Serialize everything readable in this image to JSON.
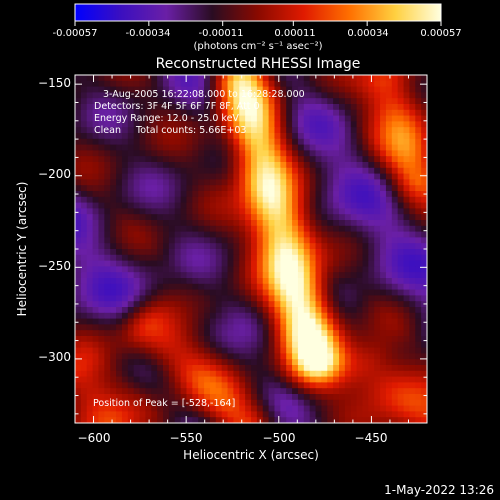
{
  "colorbar": {
    "tick_labels": [
      "-0.00057",
      "-0.00034",
      "-0.00011",
      "0.00011",
      "0.00034",
      "0.00057"
    ],
    "tick_values": [
      -0.00057,
      -0.00034,
      -0.00011,
      0.00011,
      0.00034,
      0.00057
    ],
    "range": [
      -0.00057,
      0.00057
    ],
    "unit_label": "(photons cm⁻² s⁻¹ asec⁻²)",
    "colormap": [
      "#0000ff",
      "#3b0fc0",
      "#6a1fa6",
      "#2a0c22",
      "#8a0a00",
      "#e01a00",
      "#ff7000",
      "#ffd040",
      "#ffffe0"
    ]
  },
  "chart_data": {
    "type": "heatmap",
    "title": "Reconstructed RHESSI Image",
    "xlabel": "Heliocentric X (arcsec)",
    "ylabel": "Heliocentric Y (arcsec)",
    "xlim": [
      -610,
      -420
    ],
    "ylim": [
      -335,
      -145
    ],
    "x_ticks": [
      -600,
      -550,
      -500,
      -450
    ],
    "y_ticks": [
      -300,
      -250,
      -200,
      -150
    ],
    "x_tick_labels": [
      "−600",
      "−550",
      "−500",
      "−450"
    ],
    "y_tick_labels": [
      "−300",
      "−250",
      "−200",
      "−150"
    ],
    "annotations": [
      "3-Aug-2005 16:22:08.000 to 16:28:28.000",
      "Detectors: 3F 4F 5F 6F 7F 8F, Att 0",
      "Energy Range: 12.0 - 25.0 keV",
      "Clean     Total counts: 5.66E+03"
    ],
    "peak_label": "Position of Peak = [-528,-164]",
    "peak": [
      -528,
      -164
    ],
    "bright_ridges": [
      {
        "from": [
          -520,
          -150
        ],
        "to": [
          -480,
          -300
        ],
        "level": 0.95
      },
      {
        "from": [
          -570,
          -285
        ],
        "to": [
          -520,
          -335
        ],
        "level": 0.7
      },
      {
        "from": [
          -440,
          -150
        ],
        "to": [
          -425,
          -200
        ],
        "level": 0.65
      },
      {
        "from": [
          -610,
          -310
        ],
        "to": [
          -595,
          -335
        ],
        "level": 0.6
      },
      {
        "from": [
          -450,
          -305
        ],
        "to": [
          -420,
          -335
        ],
        "level": 0.6
      }
    ]
  },
  "footer": {
    "timestamp": "1-May-2022 13:26"
  }
}
